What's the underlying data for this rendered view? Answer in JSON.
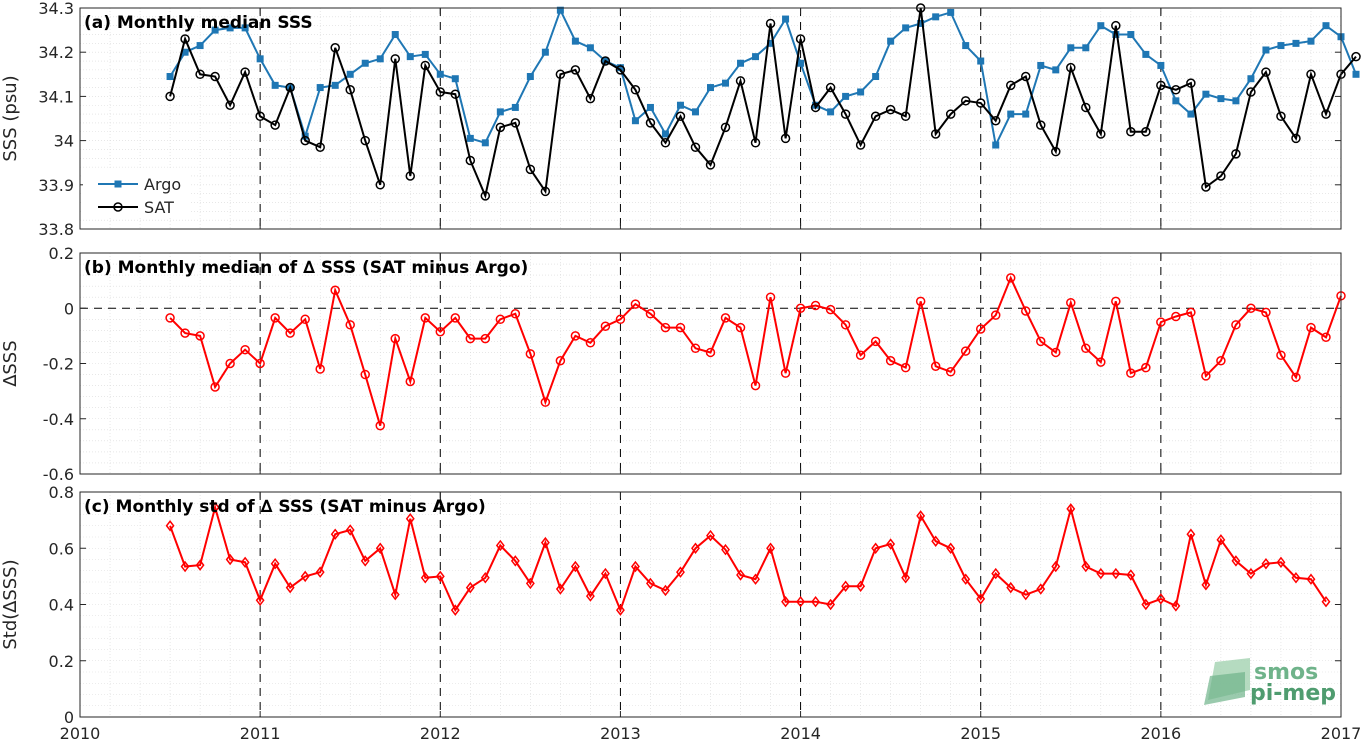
{
  "colors": {
    "argo": "#1f77b4",
    "sat": "#000000",
    "delta": "#ff0000",
    "grid": "#d9d9d9"
  },
  "logo": {
    "line1": "smos",
    "line2": "pi-mep"
  },
  "chart_data": [
    {
      "type": "line",
      "title": "(a) Monthly median SSS",
      "xlabel": "",
      "ylabel": "SSS (psu)",
      "xlim": [
        2010,
        2017
      ],
      "ylim": [
        33.8,
        34.3
      ],
      "xticks": [
        "2010",
        "2011",
        "2012",
        "2013",
        "2014",
        "2015",
        "2016",
        "2017"
      ],
      "yticks": [
        "33.8",
        "33.9",
        "34",
        "34.1",
        "34.2",
        "34.3"
      ],
      "grid": true,
      "legend": "lower-left",
      "x_start": "2010-07",
      "x_step": "1 month",
      "series": [
        {
          "name": "Argo",
          "marker": "square",
          "values": [
            34.145,
            34.2,
            34.215,
            34.25,
            34.255,
            34.255,
            34.185,
            34.125,
            34.12,
            34.01,
            34.12,
            34.125,
            34.15,
            34.175,
            34.185,
            34.24,
            34.19,
            34.195,
            34.15,
            34.14,
            34.005,
            33.995,
            34.065,
            34.075,
            34.145,
            34.2,
            34.295,
            34.225,
            34.21,
            34.18,
            34.165,
            34.045,
            34.075,
            34.015,
            34.08,
            34.065,
            34.12,
            34.13,
            34.175,
            34.19,
            34.22,
            34.275,
            34.175,
            34.08,
            34.065,
            34.1,
            34.11,
            34.145,
            34.225,
            34.255,
            34.265,
            34.28,
            34.29,
            34.215,
            34.18,
            33.99,
            34.06,
            34.06,
            34.17,
            34.16,
            34.21,
            34.21,
            34.26,
            34.24,
            34.24,
            34.195,
            34.17,
            34.09,
            34.06,
            34.105,
            34.095,
            34.09,
            34.14,
            34.205,
            34.215,
            34.22,
            34.225,
            34.26,
            34.235,
            34.15
          ]
        },
        {
          "name": "SAT",
          "marker": "circle",
          "values": [
            34.1,
            34.23,
            34.15,
            34.145,
            34.08,
            34.155,
            34.055,
            34.035,
            34.12,
            34.0,
            33.985,
            34.21,
            34.115,
            34.0,
            33.9,
            34.185,
            33.92,
            34.17,
            34.11,
            34.105,
            33.955,
            33.875,
            34.03,
            34.04,
            33.935,
            33.885,
            34.15,
            34.16,
            34.095,
            34.18,
            34.16,
            34.115,
            34.04,
            33.995,
            34.055,
            33.985,
            33.945,
            34.03,
            34.135,
            33.995,
            34.265,
            34.005,
            34.23,
            34.075,
            34.12,
            34.06,
            33.99,
            34.055,
            34.07,
            34.055,
            34.3,
            34.015,
            34.06,
            34.09,
            34.085,
            34.045,
            34.125,
            34.145,
            34.035,
            33.975,
            34.165,
            34.075,
            34.015,
            34.26,
            34.02,
            34.02,
            34.125,
            34.115,
            34.13,
            33.895,
            33.92,
            33.97,
            34.11,
            34.155,
            34.055,
            34.005,
            34.15,
            34.06,
            34.15,
            34.19
          ]
        }
      ]
    },
    {
      "type": "line",
      "title": "(b) Monthly median of ∆ SSS (SAT minus Argo)",
      "xlabel": "",
      "ylabel": "∆SSS",
      "xlim": [
        2010,
        2017
      ],
      "ylim": [
        -0.6,
        0.2
      ],
      "xticks": [
        "2010",
        "2011",
        "2012",
        "2013",
        "2014",
        "2015",
        "2016",
        "2017"
      ],
      "yticks": [
        "-0.6",
        "-0.4",
        "-0.2",
        "0",
        "0.2"
      ],
      "grid": true,
      "reference_line": 0,
      "x_start": "2010-07",
      "x_step": "1 month",
      "series": [
        {
          "name": "",
          "marker": "circle",
          "values": [
            -0.035,
            -0.09,
            -0.1,
            -0.285,
            -0.2,
            -0.15,
            -0.2,
            -0.035,
            -0.09,
            -0.04,
            -0.22,
            0.065,
            -0.06,
            -0.24,
            -0.425,
            -0.11,
            -0.265,
            -0.035,
            -0.085,
            -0.035,
            -0.11,
            -0.11,
            -0.04,
            -0.02,
            -0.165,
            -0.34,
            -0.19,
            -0.1,
            -0.125,
            -0.065,
            -0.04,
            0.015,
            -0.02,
            -0.07,
            -0.07,
            -0.145,
            -0.16,
            -0.035,
            -0.07,
            -0.28,
            0.04,
            -0.235,
            0.0,
            0.01,
            -0.005,
            -0.06,
            -0.17,
            -0.12,
            -0.19,
            -0.215,
            0.025,
            -0.21,
            -0.23,
            -0.155,
            -0.075,
            -0.025,
            0.11,
            -0.01,
            -0.12,
            -0.16,
            0.02,
            -0.145,
            -0.195,
            0.025,
            -0.235,
            -0.215,
            -0.05,
            -0.03,
            -0.015,
            -0.245,
            -0.19,
            -0.06,
            0.0,
            -0.015,
            -0.17,
            -0.25,
            -0.07,
            -0.105,
            0.045
          ]
        }
      ]
    },
    {
      "type": "line",
      "title": "(c) Monthly std of ∆ SSS (SAT minus Argo)",
      "xlabel": "",
      "ylabel": "Std(∆SSS)",
      "xlim": [
        2010,
        2017
      ],
      "ylim": [
        0,
        0.8
      ],
      "xticks": [
        "2010",
        "2011",
        "2012",
        "2013",
        "2014",
        "2015",
        "2016",
        "2017"
      ],
      "yticks": [
        "0",
        "0.2",
        "0.4",
        "0.6",
        "0.8"
      ],
      "grid": true,
      "x_start": "2010-07",
      "x_step": "1 month",
      "series": [
        {
          "name": "",
          "marker": "diamond",
          "values": [
            0.68,
            0.535,
            0.54,
            0.745,
            0.56,
            0.55,
            0.415,
            0.545,
            0.46,
            0.5,
            0.515,
            0.65,
            0.665,
            0.555,
            0.6,
            0.435,
            0.705,
            0.495,
            0.5,
            0.38,
            0.46,
            0.495,
            0.61,
            0.555,
            0.475,
            0.62,
            0.455,
            0.535,
            0.43,
            0.51,
            0.38,
            0.535,
            0.475,
            0.45,
            0.515,
            0.6,
            0.645,
            0.595,
            0.505,
            0.49,
            0.6,
            0.41,
            0.41,
            0.41,
            0.4,
            0.465,
            0.465,
            0.6,
            0.615,
            0.495,
            0.715,
            0.625,
            0.6,
            0.49,
            0.42,
            0.51,
            0.46,
            0.435,
            0.455,
            0.535,
            0.74,
            0.535,
            0.51,
            0.51,
            0.505,
            0.4,
            0.42,
            0.395,
            0.65,
            0.47,
            0.63,
            0.555,
            0.51,
            0.545,
            0.55,
            0.495,
            0.49,
            0.41
          ]
        }
      ]
    }
  ]
}
